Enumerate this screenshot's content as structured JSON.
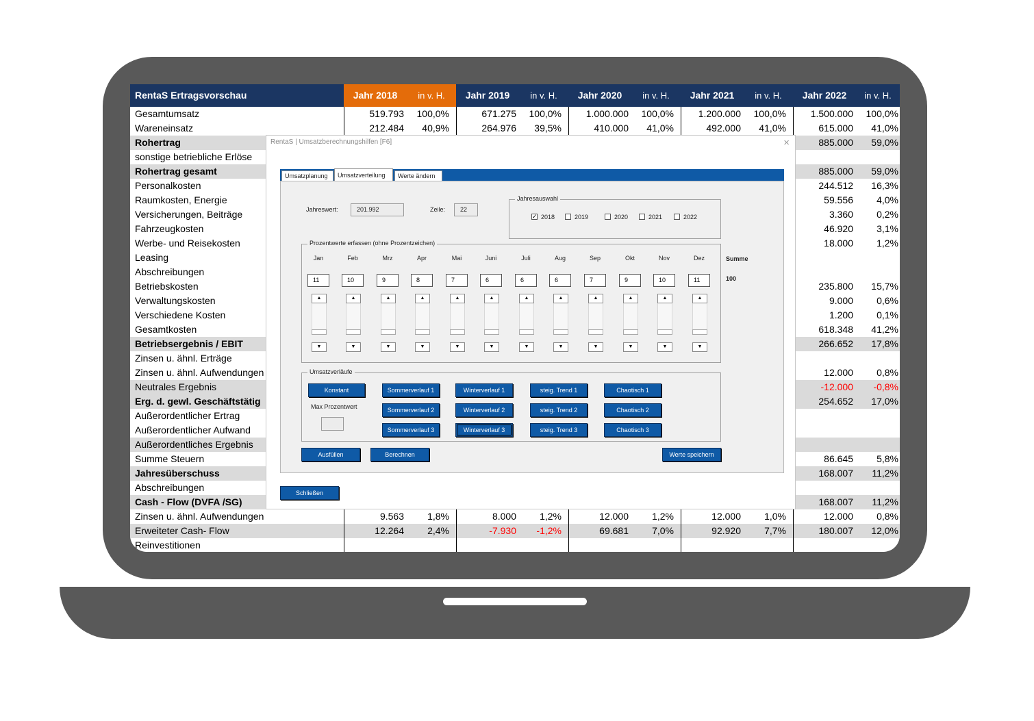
{
  "table": {
    "title": "RentaS Ertragsvorschau",
    "years": [
      "Jahr 2018",
      "Jahr 2019",
      "Jahr 2020",
      "Jahr 2021",
      "Jahr 2022"
    ],
    "pct_label": "in v. H.",
    "rows": [
      {
        "label": "Gesamtumsatz",
        "bold": false,
        "shade": false,
        "cells": [
          "519.793",
          "100,0%",
          "671.275",
          "100,0%",
          "1.000.000",
          "100,0%",
          "1.200.000",
          "100,0%",
          "1.500.000",
          "100,0%"
        ]
      },
      {
        "label": "Wareneinsatz",
        "bold": false,
        "shade": false,
        "cells": [
          "212.484",
          "40,9%",
          "264.976",
          "39,5%",
          "410.000",
          "41,0%",
          "492.000",
          "41,0%",
          "615.000",
          "41,0%"
        ]
      },
      {
        "label": "Rohertrag",
        "bold": true,
        "shade": true,
        "cells": [
          "",
          "",
          "",
          "",
          "",
          "",
          "",
          "",
          "885.000",
          "59,0%"
        ]
      },
      {
        "label": "sonstige betriebliche Erlöse",
        "bold": false,
        "shade": false,
        "cells": [
          "",
          "",
          "",
          "",
          "",
          "",
          "",
          "",
          "",
          ""
        ]
      },
      {
        "label": "Rohertrag gesamt",
        "bold": true,
        "shade": true,
        "cells": [
          "",
          "",
          "",
          "",
          "",
          "",
          "",
          "",
          "885.000",
          "59,0%"
        ]
      },
      {
        "label": "Personalkosten",
        "bold": false,
        "shade": false,
        "cells": [
          "",
          "",
          "",
          "",
          "",
          "",
          "",
          "",
          "244.512",
          "16,3%"
        ]
      },
      {
        "label": "Raumkosten,  Energie",
        "bold": false,
        "shade": false,
        "cells": [
          "",
          "",
          "",
          "",
          "",
          "",
          "",
          "",
          "59.556",
          "4,0%"
        ]
      },
      {
        "label": "Versicherungen, Beiträge",
        "bold": false,
        "shade": false,
        "cells": [
          "",
          "",
          "",
          "",
          "",
          "",
          "",
          "",
          "3.360",
          "0,2%"
        ]
      },
      {
        "label": "Fahrzeugkosten",
        "bold": false,
        "shade": false,
        "cells": [
          "",
          "",
          "",
          "",
          "",
          "",
          "",
          "",
          "46.920",
          "3,1%"
        ]
      },
      {
        "label": "Werbe- und Reisekosten",
        "bold": false,
        "shade": false,
        "cells": [
          "",
          "",
          "",
          "",
          "",
          "",
          "",
          "",
          "18.000",
          "1,2%"
        ]
      },
      {
        "label": "Leasing",
        "bold": false,
        "shade": false,
        "cells": [
          "",
          "",
          "",
          "",
          "",
          "",
          "",
          "",
          "",
          ""
        ]
      },
      {
        "label": "Abschreibungen",
        "bold": false,
        "shade": false,
        "cells": [
          "",
          "",
          "",
          "",
          "",
          "",
          "",
          "",
          "",
          ""
        ]
      },
      {
        "label": "Betriebskosten",
        "bold": false,
        "shade": false,
        "cells": [
          "",
          "",
          "",
          "",
          "",
          "",
          "",
          "",
          "235.800",
          "15,7%"
        ]
      },
      {
        "label": "Verwaltungskosten",
        "bold": false,
        "shade": false,
        "cells": [
          "",
          "",
          "",
          "",
          "",
          "",
          "",
          "",
          "9.000",
          "0,6%"
        ]
      },
      {
        "label": "Verschiedene Kosten",
        "bold": false,
        "shade": false,
        "cells": [
          "",
          "",
          "",
          "",
          "",
          "",
          "",
          "",
          "1.200",
          "0,1%"
        ]
      },
      {
        "label": "Gesamtkosten",
        "bold": false,
        "shade": false,
        "cells": [
          "",
          "",
          "",
          "",
          "",
          "",
          "",
          "",
          "618.348",
          "41,2%"
        ]
      },
      {
        "label": "Betriebsergebnis / EBIT",
        "bold": true,
        "shade": true,
        "cells": [
          "",
          "",
          "",
          "",
          "",
          "",
          "",
          "",
          "266.652",
          "17,8%"
        ]
      },
      {
        "label": "Zinsen u. ähnl. Erträge",
        "bold": false,
        "shade": false,
        "cells": [
          "",
          "",
          "",
          "",
          "",
          "",
          "",
          "",
          "",
          ""
        ]
      },
      {
        "label": "Zinsen u. ähnl. Aufwendungen",
        "bold": false,
        "shade": false,
        "cells": [
          "",
          "",
          "",
          "",
          "",
          "",
          "",
          "",
          "12.000",
          "0,8%"
        ]
      },
      {
        "label": "Neutrales Ergebnis",
        "bold": false,
        "shade": true,
        "cells": [
          "",
          "",
          "",
          "",
          "",
          "",
          "",
          "",
          "-12.000",
          "-0,8%"
        ]
      },
      {
        "label": "Erg. d. gewl. Geschäftstätig",
        "bold": true,
        "shade": true,
        "cells": [
          "",
          "",
          "",
          "",
          "",
          "",
          "",
          "",
          "254.652",
          "17,0%"
        ]
      },
      {
        "label": "Außerordentlicher Ertrag",
        "bold": false,
        "shade": false,
        "cells": [
          "",
          "",
          "",
          "",
          "",
          "",
          "",
          "",
          "",
          ""
        ]
      },
      {
        "label": "Außerordentlicher Aufwand",
        "bold": false,
        "shade": false,
        "cells": [
          "",
          "",
          "",
          "",
          "",
          "",
          "",
          "",
          "",
          ""
        ]
      },
      {
        "label": "Außerordentliches Ergebnis",
        "bold": false,
        "shade": true,
        "cells": [
          "",
          "",
          "",
          "",
          "",
          "",
          "",
          "",
          "",
          ""
        ]
      },
      {
        "label": "Summe Steuern",
        "bold": false,
        "shade": false,
        "cells": [
          "",
          "",
          "",
          "",
          "",
          "",
          "",
          "",
          "86.645",
          "5,8%"
        ]
      },
      {
        "label": "Jahresüberschuss",
        "bold": true,
        "shade": true,
        "cells": [
          "",
          "",
          "",
          "",
          "",
          "",
          "",
          "",
          "168.007",
          "11,2%"
        ]
      },
      {
        "label": "Abschreibungen",
        "bold": false,
        "shade": false,
        "cells": [
          "",
          "",
          "",
          "",
          "",
          "",
          "",
          "",
          "",
          ""
        ]
      },
      {
        "label": "Cash - Flow (DVFA /SG)",
        "bold": true,
        "shade": true,
        "cells": [
          "",
          "",
          "",
          "",
          "",
          "",
          "",
          "",
          "168.007",
          "11,2%"
        ]
      },
      {
        "label": "Zinsen u. ähnl. Aufwendungen",
        "bold": false,
        "shade": false,
        "cells": [
          "9.563",
          "1,8%",
          "8.000",
          "1,2%",
          "12.000",
          "1,2%",
          "12.000",
          "1,0%",
          "12.000",
          "0,8%"
        ]
      },
      {
        "label": "Erweiteter Cash- Flow",
        "bold": false,
        "shade": true,
        "cells": [
          "12.264",
          "2,4%",
          "-7.930",
          "-1,2%",
          "69.681",
          "7,0%",
          "92.920",
          "7,7%",
          "180.007",
          "12,0%"
        ]
      },
      {
        "label": "Reinvestitionen",
        "bold": false,
        "shade": false,
        "cells": [
          "",
          "",
          "",
          "",
          "",
          "",
          "",
          "",
          "",
          ""
        ]
      }
    ]
  },
  "dialog": {
    "title": "RentaS | Umsatzberechnungshilfen  [F6]",
    "close_icon": "×",
    "tabs": [
      "Umsatzplanung",
      "Umsatzverteilung",
      "Werte ändern"
    ],
    "jahreswert_label": "Jahreswert:",
    "jahreswert_value": "201.992",
    "zeile_label": "Zeile:",
    "zeile_value": "22",
    "jahresauswahl": {
      "legend": "Jahresauswahl",
      "years": [
        {
          "label": "2018",
          "checked": "✓"
        },
        {
          "label": "2019",
          "checked": ""
        },
        {
          "label": "2020",
          "checked": ""
        },
        {
          "label": "2021",
          "checked": ""
        },
        {
          "label": "2022",
          "checked": ""
        }
      ]
    },
    "prozent": {
      "legend": "Prozentwerte erfassen (ohne Prozentzeichen)",
      "months": [
        "Jan",
        "Feb",
        "Mrz",
        "Apr",
        "Mai",
        "Juni",
        "Juli",
        "Aug",
        "Sep",
        "Okt",
        "Nov",
        "Dez"
      ],
      "values": [
        "11",
        "10",
        "9",
        "8",
        "7",
        "6",
        "6",
        "6",
        "7",
        "9",
        "10",
        "11"
      ],
      "summe_label": "Summe",
      "summe_value": "100",
      "spin_up": "▲",
      "spin_down": "▼"
    },
    "verlaeufe": {
      "legend": "Umsatzverläufe",
      "konstant": "Konstant",
      "max_label": "Max Prozentwert",
      "max_value": "",
      "buttons": [
        [
          "Sommerverlauf 1",
          "Sommerverlauf 2",
          "Sommerverlauf 3"
        ],
        [
          "Winterverlauf 1",
          "Winterverlauf 2",
          "Winterverlauf 3"
        ],
        [
          "steig. Trend 1",
          "steig. Trend 2",
          "steig. Trend 3"
        ],
        [
          "Chaotisch 1",
          "Chaotisch 2",
          "Chaotisch 3"
        ]
      ]
    },
    "ausfuellen": "Ausfüllen",
    "berechnen": "Berechnen",
    "werte_speichern": "Werte speichern",
    "schliessen": "Schließen"
  },
  "colors": {
    "header": "#1b3662",
    "accent": "#e46c0a",
    "button": "#0f5aa6",
    "shade": "#dadada",
    "negative": "#ff0000"
  }
}
